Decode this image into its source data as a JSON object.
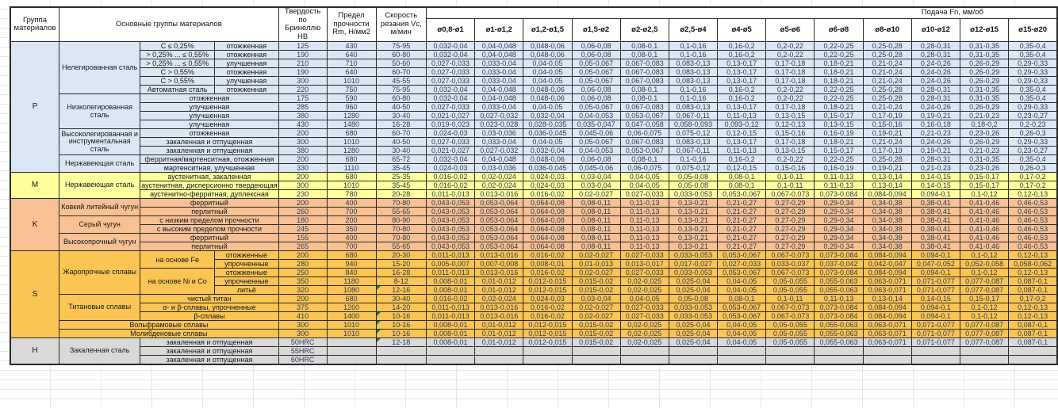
{
  "header": {
    "col_group": "Группа материалов",
    "col_main": "Основные группы материалов",
    "col_hb": "Твердость по Бринеллю HB",
    "col_rm": "Предел прочности Rm, Н/мм2",
    "col_vc": "Скорость резания Vc, м/мин",
    "feed_title": "Подача Fn, мм/об",
    "diameters": [
      "ø0,8-ø1",
      "ø1-ø1,2",
      "ø1,2-ø1,5",
      "ø1,5-ø2",
      "ø2-ø2,5",
      "ø2,5-ø4",
      "ø4-ø5",
      "ø5-ø6",
      "ø6-ø8",
      "ø8-ø10",
      "ø10-ø12",
      "ø12-ø15",
      "ø15-ø20"
    ]
  },
  "feed_patterns": {
    "A": [
      "0,032-0,04",
      "0,04-0,048",
      "0,048-0,06",
      "0,06-0,08",
      "0,08-0,1",
      "0,1-0,16",
      "0,16-0,2",
      "0,2-0,22",
      "0,22-0,25",
      "0,25-0,28",
      "0,28-0,31",
      "0,31-0,35",
      "0,35-0,4"
    ],
    "B": [
      "0,027-0,033",
      "0,033-0,04",
      "0,04-0,05",
      "0,05-0,067",
      "0,067-0,083",
      "0,083-0,13",
      "0,13-0,17",
      "0,17-0,18",
      "0,18-0,21",
      "0,21-0,24",
      "0,24-0,26",
      "0,26-0,29",
      "0,29-0,33"
    ],
    "C": [
      "0,021-0,027",
      "0,027-0,032",
      "0,032-0,04",
      "0,04-0,053",
      "0,053-0,067",
      "0,067-0,11",
      "0,11-0,13",
      "0,13-0,15",
      "0,15-0,17",
      "0,17-0,19",
      "0,19-0,21",
      "0,21-0,23",
      "0,23-0,27"
    ],
    "D": [
      "0,019-0,023",
      "0,023-0,028",
      "0,028-0,035",
      "0,035-0,047",
      "0,047-0,058",
      "0,058-0,093",
      "0,093-0,12",
      "0,12-0,13",
      "0,13-0,15",
      "0,15-0,16",
      "0,16-0,18",
      "0,18-0,2",
      "0,2-0,23"
    ],
    "E": [
      "0,024-0,03",
      "0,03-0,036",
      "0,036-0,045",
      "0,045-0,06",
      "0,06-0,075",
      "0,075-0,12",
      "0,12-0,15",
      "0,15-0,16",
      "0,16-0,19",
      "0,19-0,21",
      "0,21-0,23",
      "0,23-0,26",
      "0,26-0,3"
    ],
    "F": [
      "0,016-0,02",
      "0,02-0,024",
      "0,024-0,03",
      "0,03-0,04",
      "0,04-0,05",
      "0,05-0,08",
      "0,08-0,1",
      "0,1-0,11",
      "0,11-0,13",
      "0,13-0,14",
      "0,14-0,15",
      "0,15-0,17",
      "0,17-0,2"
    ],
    "G": [
      "0,011-0,013",
      "0,013-0,016",
      "0,016-0,02",
      "0,02-0,027",
      "0,027-0,033",
      "0,033-0,053",
      "0,053-0,067",
      "0,067-0,073",
      "0,073-0,084",
      "0,084-0,094",
      "0,094-0,1",
      "0,1-0,12",
      "0,12-0,13"
    ],
    "H": [
      "0,043-0,053",
      "0,053-0,064",
      "0,064-0,08",
      "0,08-0,11",
      "0,11-0,13",
      "0,13-0,21",
      "0,21-0,27",
      "0,27-0,29",
      "0,29-0,34",
      "0,34-0,38",
      "0,38-0,41",
      "0,41-0,46",
      "0,46-0,53"
    ],
    "I": [
      "0,005-0,007",
      "0,007-0,008",
      "0,008-0,01",
      "0,01-0,013",
      "0,013-0,017",
      "0,017-0,027",
      "0,027-0,033",
      "0,033-0,037",
      "0,037-0,042",
      "0,042-0,047",
      "0,047-0,052",
      "0,052-0,058",
      "0,058-0,062"
    ],
    "J": [
      "0,008-0,01",
      "0,01-0,012",
      "0,012-0,015",
      "0,015-0,02",
      "0,02-0,025",
      "0,025-0,04",
      "0,04-0,05",
      "0,05-0,055",
      "0,055-0,063",
      "0,063-0,071",
      "0,071-0,077",
      "0,077-0,087",
      "0,087-0,1"
    ],
    "EMPTY": [
      "",
      "",
      "",
      "",
      "",
      "",
      "",
      "",
      "",
      "",
      "",
      "",
      ""
    ]
  },
  "groups": [
    {
      "code": "P",
      "color": "#dbe7f4",
      "rows": [
        {
          "desc": [
            {
              "t": "Нелегированная сталь",
              "rs": 6,
              "wrap": true
            },
            {
              "t": "C ≤ 0,25%"
            },
            {
              "t": "отожженная"
            }
          ],
          "hb": "125",
          "rm": "430",
          "vc": "75-95",
          "fp": "A",
          "comment": false
        },
        {
          "desc": [
            {
              "t": "> 0,25% ... ≤ 0,55%"
            },
            {
              "t": "отожженная"
            }
          ],
          "hb": "190",
          "rm": "640",
          "vc": "60-80",
          "fp": "A",
          "comment": false
        },
        {
          "desc": [
            {
              "t": "> 0,25% ... ≤ 0,55%"
            },
            {
              "t": "улучшенная"
            }
          ],
          "hb": "210",
          "rm": "710",
          "vc": "50-60",
          "fp": "B",
          "comment": false
        },
        {
          "desc": [
            {
              "t": "C > 0,55%"
            },
            {
              "t": "отожженная"
            }
          ],
          "hb": "190",
          "rm": "640",
          "vc": "60-70",
          "fp": "B",
          "comment": false
        },
        {
          "desc": [
            {
              "t": "C > 0,55%"
            },
            {
              "t": "улучшенная"
            }
          ],
          "hb": "300",
          "rm": "1010",
          "vc": "45-55",
          "fp": "B",
          "comment": false
        },
        {
          "desc": [
            {
              "t": "Автоматная сталь"
            },
            {
              "t": "отожженная"
            }
          ],
          "hb": "220",
          "rm": "750",
          "vc": "75-95",
          "fp": "A",
          "comment": false
        },
        {
          "desc": [
            {
              "t": "Низколегированная сталь",
              "rs": 4,
              "wrap": true
            },
            {
              "t": "отожженная",
              "cs": 2
            }
          ],
          "hb": "175",
          "rm": "590",
          "vc": "60-80",
          "fp": "A",
          "comment": false
        },
        {
          "desc": [
            {
              "t": "улучшенная",
              "cs": 2
            }
          ],
          "hb": "285",
          "rm": "960",
          "vc": "40-50",
          "fp": "B",
          "comment": false
        },
        {
          "desc": [
            {
              "t": "улучшенная",
              "cs": 2
            }
          ],
          "hb": "380",
          "rm": "1280",
          "vc": "30-40",
          "fp": "C",
          "comment": false
        },
        {
          "desc": [
            {
              "t": "улучшенная",
              "cs": 2
            }
          ],
          "hb": "430",
          "rm": "1480",
          "vc": "16-28",
          "fp": "D",
          "comment": false
        },
        {
          "desc": [
            {
              "t": "Высоколегированная и инструментальная сталь",
              "rs": 3,
              "wrap": true
            },
            {
              "t": "отожженная",
              "cs": 2
            }
          ],
          "hb": "200",
          "rm": "680",
          "vc": "60-70",
          "fp": "E",
          "comment": false
        },
        {
          "desc": [
            {
              "t": "закаленная и отпущенная",
              "cs": 2
            }
          ],
          "hb": "300",
          "rm": "1010",
          "vc": "40-50",
          "fp": "B",
          "comment": false
        },
        {
          "desc": [
            {
              "t": "закаленная и отпущенная",
              "cs": 2
            }
          ],
          "hb": "380",
          "rm": "1280",
          "vc": "30-40",
          "fp": "C",
          "comment": false
        },
        {
          "desc": [
            {
              "t": "Нержавеющая сталь",
              "rs": 2,
              "wrap": true
            },
            {
              "t": "ферритная/мартенситная, отожженная",
              "cs": 2
            }
          ],
          "hb": "200",
          "rm": "680",
          "vc": "65-72",
          "fp": "A",
          "comment": false
        },
        {
          "desc": [
            {
              "t": "мартенситная, улучшенная",
              "cs": 2
            }
          ],
          "hb": "330",
          "rm": "1110",
          "vc": "35-45",
          "fp": "E",
          "comment": false
        }
      ]
    },
    {
      "code": "M",
      "color": "#ffff9d",
      "rows": [
        {
          "desc": [
            {
              "t": "Нержавеющая сталь",
              "rs": 3,
              "wrap": true
            },
            {
              "t": "аустенитная, закаленная",
              "cs": 2
            }
          ],
          "hb": "200",
          "rm": "680",
          "vc": "25-35",
          "fp": "F",
          "comment": false
        },
        {
          "desc": [
            {
              "t": "аустенитная, дисперсионно твердеющая",
              "cs": 2
            }
          ],
          "hb": "300",
          "rm": "1010",
          "vc": "35-45",
          "fp": "F",
          "comment": false
        },
        {
          "desc": [
            {
              "t": "аустенитно-ферритная, дуплексная",
              "cs": 2
            }
          ],
          "hb": "230",
          "rm": "780",
          "vc": "20-28",
          "fp": "G",
          "comment": false
        }
      ]
    },
    {
      "code": "K",
      "color": "#f7c193",
      "rows": [
        {
          "desc": [
            {
              "t": "Ковкий литейный чугун",
              "rs": 2,
              "wrap": true
            },
            {
              "t": "ферритный",
              "cs": 2
            }
          ],
          "hb": "200",
          "rm": "400",
          "vc": "70-80",
          "fp": "H",
          "comment": false
        },
        {
          "desc": [
            {
              "t": "перлитный",
              "cs": 2
            }
          ],
          "hb": "260",
          "rm": "700",
          "vc": "55-65",
          "fp": "H",
          "comment": false
        },
        {
          "desc": [
            {
              "t": "Серый чугун",
              "rs": 2,
              "wrap": true
            },
            {
              "t": "с низким пределом прочности",
              "cs": 2
            }
          ],
          "hb": "180",
          "rm": "200",
          "vc": "80-90",
          "fp": "H",
          "comment": false
        },
        {
          "desc": [
            {
              "t": "с высоким пределом прочности",
              "cs": 2
            }
          ],
          "hb": "245",
          "rm": "350",
          "vc": "70-80",
          "fp": "H",
          "comment": false
        },
        {
          "desc": [
            {
              "t": "Высокопрочный чугун",
              "rs": 2,
              "wrap": true
            },
            {
              "t": "ферритный",
              "cs": 2
            }
          ],
          "hb": "155",
          "rm": "400",
          "vc": "70-80",
          "fp": "H",
          "comment": false
        },
        {
          "desc": [
            {
              "t": "перлитный",
              "cs": 2
            }
          ],
          "hb": "265",
          "rm": "700",
          "vc": "55-65",
          "fp": "H",
          "comment": false
        }
      ]
    },
    {
      "code": "S",
      "color": "#fac552",
      "rows": [
        {
          "desc": [
            {
              "t": "Жаропрочные сплавы",
              "rs": 5,
              "wrap": true
            },
            {
              "t": "на основе Fe",
              "rs": 2
            },
            {
              "t": "отожженные"
            }
          ],
          "hb": "200",
          "rm": "680",
          "vc": "20-30",
          "fp": "G",
          "comment": false
        },
        {
          "desc": [
            {
              "t": "упрочненные"
            }
          ],
          "hb": "280",
          "rm": "940",
          "vc": "15-20",
          "fp": "I",
          "comment": false
        },
        {
          "desc": [
            {
              "t": "на основе Ni и Co",
              "rs": 3
            },
            {
              "t": "отожженные"
            }
          ],
          "hb": "250",
          "rm": "840",
          "vc": "16-28",
          "fp": "G",
          "comment": false
        },
        {
          "desc": [
            {
              "t": "упрочненные"
            }
          ],
          "hb": "350",
          "rm": "1180",
          "vc": "8-12",
          "fp": "J",
          "comment": false
        },
        {
          "desc": [
            {
              "t": "литьё"
            }
          ],
          "hb": "320",
          "rm": "1080",
          "vc": "12-16",
          "fp": "J",
          "comment": true
        },
        {
          "desc": [
            {
              "t": "Титановые сплавы",
              "rs": 3,
              "wrap": true
            },
            {
              "t": "чистый титан",
              "cs": 2
            }
          ],
          "hb": "200",
          "rm": "680",
          "vc": "30-40",
          "fp": "F",
          "comment": false
        },
        {
          "desc": [
            {
              "t": "α- и β-сплавы, упрочненные",
              "cs": 2
            }
          ],
          "hb": "375",
          "rm": "1260",
          "vc": "14-20",
          "fp": "G",
          "comment": false
        },
        {
          "desc": [
            {
              "t": "β-сплавы",
              "cs": 2
            }
          ],
          "hb": "410",
          "rm": "1400",
          "vc": "10-16",
          "fp": "G",
          "comment": true
        },
        {
          "desc": [
            {
              "t": "Вольфрамовые сплавы",
              "cs": 3
            }
          ],
          "hb": "300",
          "rm": "1010",
          "vc": "10-16",
          "fp": "J",
          "comment": true
        },
        {
          "desc": [
            {
              "t": "Молибденовые сплавы",
              "cs": 3
            }
          ],
          "hb": "300",
          "rm": "1010",
          "vc": "10-16",
          "fp": "J",
          "comment": true
        }
      ]
    },
    {
      "code": "H",
      "color": "#d9d9d9",
      "rows": [
        {
          "desc": [
            {
              "t": "Закаленная сталь",
              "rs": 3,
              "wrap": true
            },
            {
              "t": "закаленная и отпущенная",
              "cs": 2
            }
          ],
          "hb": "50HRC",
          "rm": "",
          "vc": "12-18",
          "fp": "J",
          "comment": true
        },
        {
          "desc": [
            {
              "t": "закаленная и отпущенная",
              "cs": 2
            }
          ],
          "hb": "55HRC",
          "rm": "",
          "vc": "",
          "fp": "EMPTY",
          "comment": false
        },
        {
          "desc": [
            {
              "t": "закаленная и отпущенная",
              "cs": 2
            }
          ],
          "hb": "60HRC",
          "rm": "",
          "vc": "",
          "fp": "EMPTY",
          "comment": false
        }
      ]
    }
  ]
}
